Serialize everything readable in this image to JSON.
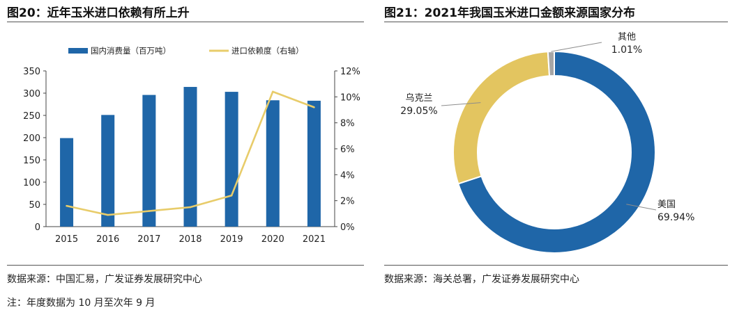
{
  "left": {
    "title": "图20：近年玉米进口依赖有所上升",
    "source": "数据来源：中国汇易，广发证券发展研究中心",
    "note": "注：年度数据为 10 月至次年 9 月"
  },
  "right": {
    "title": "图21：2021年我国玉米进口金额来源国家分布",
    "source": "数据来源：海关总署，广发证券发展研究中心"
  },
  "colors": {
    "bar": "#1f66a8",
    "line": "#e8cc6a",
    "usa": "#1f66a8",
    "ukraine": "#e3c560",
    "other": "#a6a6a6"
  },
  "chart_data": [
    {
      "type": "bar+line",
      "title": "图20：近年玉米进口依赖有所上升",
      "categories": [
        "2015",
        "2016",
        "2017",
        "2018",
        "2019",
        "2020",
        "2021"
      ],
      "series": [
        {
          "name": "国内消费量（百万吨）",
          "type": "bar",
          "axis": "left",
          "values": [
            199,
            251,
            296,
            314,
            303,
            284,
            283
          ]
        },
        {
          "name": "进口依赖度（右轴）",
          "type": "line",
          "axis": "right",
          "values": [
            1.6,
            0.9,
            1.2,
            1.5,
            2.4,
            10.4,
            9.2
          ]
        }
      ],
      "left_axis": {
        "ylim": [
          0,
          350
        ],
        "ticks": [
          "0",
          "50",
          "100",
          "150",
          "200",
          "250",
          "300",
          "350"
        ]
      },
      "right_axis": {
        "ylim": [
          0,
          12
        ],
        "ticks": [
          "0%",
          "2%",
          "4%",
          "6%",
          "8%",
          "10%",
          "12%"
        ]
      },
      "legend": "top"
    },
    {
      "type": "pie",
      "donut": true,
      "title": "图21：2021年我国玉米进口金额来源国家分布",
      "slices": [
        {
          "label": "美国",
          "value": 69.94,
          "value_label": "69.94%"
        },
        {
          "label": "乌克兰",
          "value": 29.05,
          "value_label": "29.05%"
        },
        {
          "label": "其他",
          "value": 1.01,
          "value_label": "1.01%"
        }
      ]
    }
  ]
}
